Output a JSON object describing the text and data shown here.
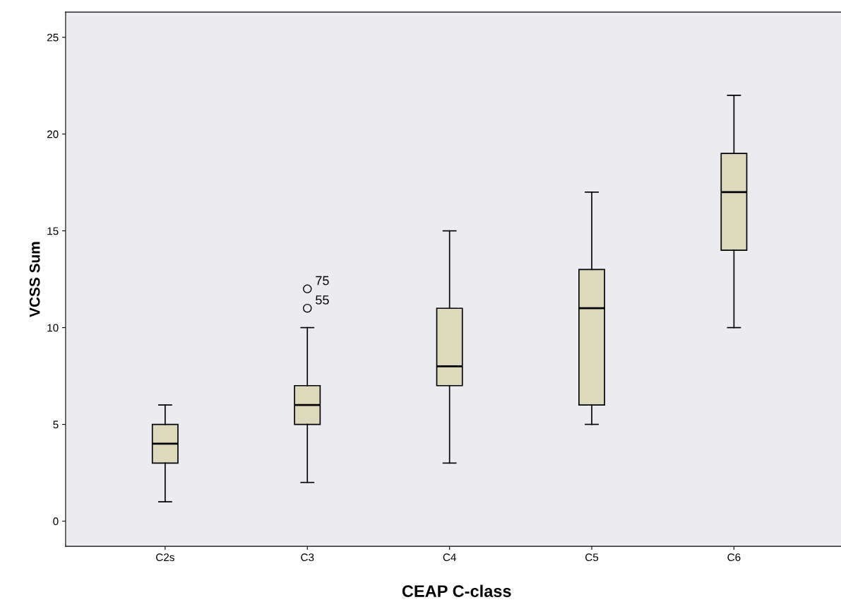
{
  "chart_data": {
    "type": "box",
    "xlabel": "CEAP C-class",
    "ylabel": "VCSS Sum",
    "categories": [
      "C2s",
      "C3",
      "C4",
      "C5",
      "C6"
    ],
    "boxes": [
      {
        "low": 1,
        "q1": 3,
        "median": 4,
        "q3": 5,
        "high": 6
      },
      {
        "low": 2,
        "q1": 5,
        "median": 6,
        "q3": 7,
        "high": 10,
        "outliers": [
          12,
          11
        ]
      },
      {
        "low": 3,
        "q1": 7,
        "median": 8,
        "q3": 11,
        "high": 15
      },
      {
        "low": 5,
        "q1": 6,
        "median": 11,
        "q3": 13,
        "high": 17
      },
      {
        "low": 10,
        "q1": 14,
        "median": 17,
        "q3": 19,
        "high": 22
      }
    ],
    "color": "#ddd9bd",
    "ylim": [
      -1.3,
      26.3
    ],
    "yticks": [
      0,
      5,
      10,
      15,
      20,
      25
    ],
    "grid": false,
    "annotations": [
      "75",
      "55"
    ]
  }
}
